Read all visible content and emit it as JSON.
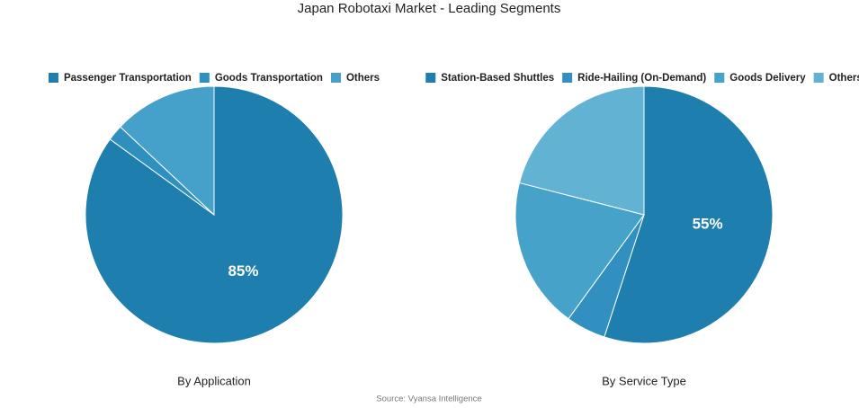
{
  "title": "Japan Robotaxi Market - Leading Segments",
  "source": "Source: Vyansa Intelligence",
  "chart_data": [
    {
      "type": "pie",
      "title": "By Application",
      "series": [
        {
          "name": "Passenger Transportation",
          "color": "#1e7eae",
          "values": [
            85
          ]
        },
        {
          "name": "Goods Transportation",
          "color": "#2f8fbe",
          "values": [
            2
          ]
        },
        {
          "name": "Others",
          "color": "#45a1c9",
          "values": [
            13
          ]
        }
      ],
      "value_labels": [
        "85%",
        null,
        null
      ]
    },
    {
      "type": "pie",
      "title": "By Service Type",
      "series": [
        {
          "name": "Station-Based Shuttles",
          "color": "#1e7eae",
          "values": [
            55
          ]
        },
        {
          "name": "Ride-Hailing (On-Demand)",
          "color": "#3190bf",
          "values": [
            5
          ]
        },
        {
          "name": "Goods Delivery",
          "color": "#46a2c9",
          "values": [
            19
          ]
        },
        {
          "name": "Others",
          "color": "#62b2d4",
          "values": [
            21
          ]
        }
      ],
      "value_labels": [
        "55%",
        null,
        null,
        null
      ]
    }
  ]
}
